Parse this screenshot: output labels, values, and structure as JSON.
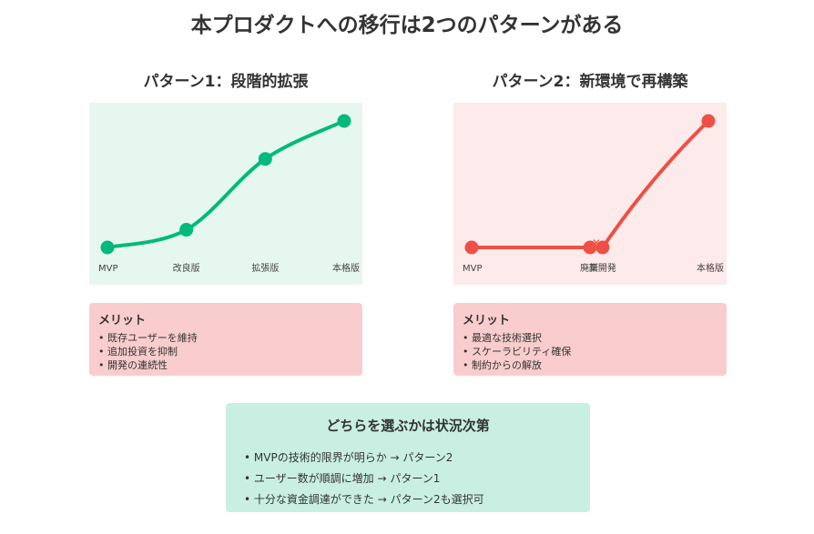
{
  "title": "本プロダクトへの移行は2つのパターンがある",
  "patterns": [
    {
      "heading": "パターン1：段階的拡張",
      "merit_title": "メリット",
      "merits": [
        "• 既存ユーザーを維持",
        "• 追加投資を抑制",
        "• 開発の連続性"
      ]
    },
    {
      "heading": "パターン2：新環境で再構築",
      "merit_title": "メリット",
      "merits": [
        "• 最適な技術選択",
        "• スケーラビリティ確保",
        "• 制約からの解放"
      ]
    }
  ],
  "summary": {
    "title": "どちらを選ぶかは状況次第",
    "items": [
      "• MVPの技術的限界が明らか → パターン2",
      "• ユーザー数が順調に増加 → パターン1",
      "• 十分な資金調達ができた → パターン2も選択可"
    ]
  },
  "chart_data": [
    {
      "type": "line",
      "background": "#e6f7f0",
      "line_color": "#00b97c",
      "ylim": [
        0,
        100
      ],
      "points": [
        {
          "label": "MVP",
          "x": 0,
          "y": 0
        },
        {
          "label": "改良版",
          "x": 1,
          "y": 14
        },
        {
          "label": "拡張版",
          "x": 2,
          "y": 70
        },
        {
          "label": "本格版",
          "x": 3,
          "y": 100
        }
      ],
      "x_range": [
        0,
        3
      ]
    },
    {
      "type": "line",
      "background": "#fdeaea",
      "line_color": "#ee5045",
      "ylim": [
        0,
        100
      ],
      "points": [
        {
          "label": "MVP",
          "x": 0,
          "y": 0
        },
        {
          "label": "廃棄",
          "x": 1.5,
          "y": 0
        },
        {
          "label": "新開発",
          "x": 1.66,
          "y": 0
        },
        {
          "label": "本格版",
          "x": 3,
          "y": 100
        }
      ],
      "x_range": [
        0,
        3
      ],
      "marker": "✕"
    }
  ]
}
